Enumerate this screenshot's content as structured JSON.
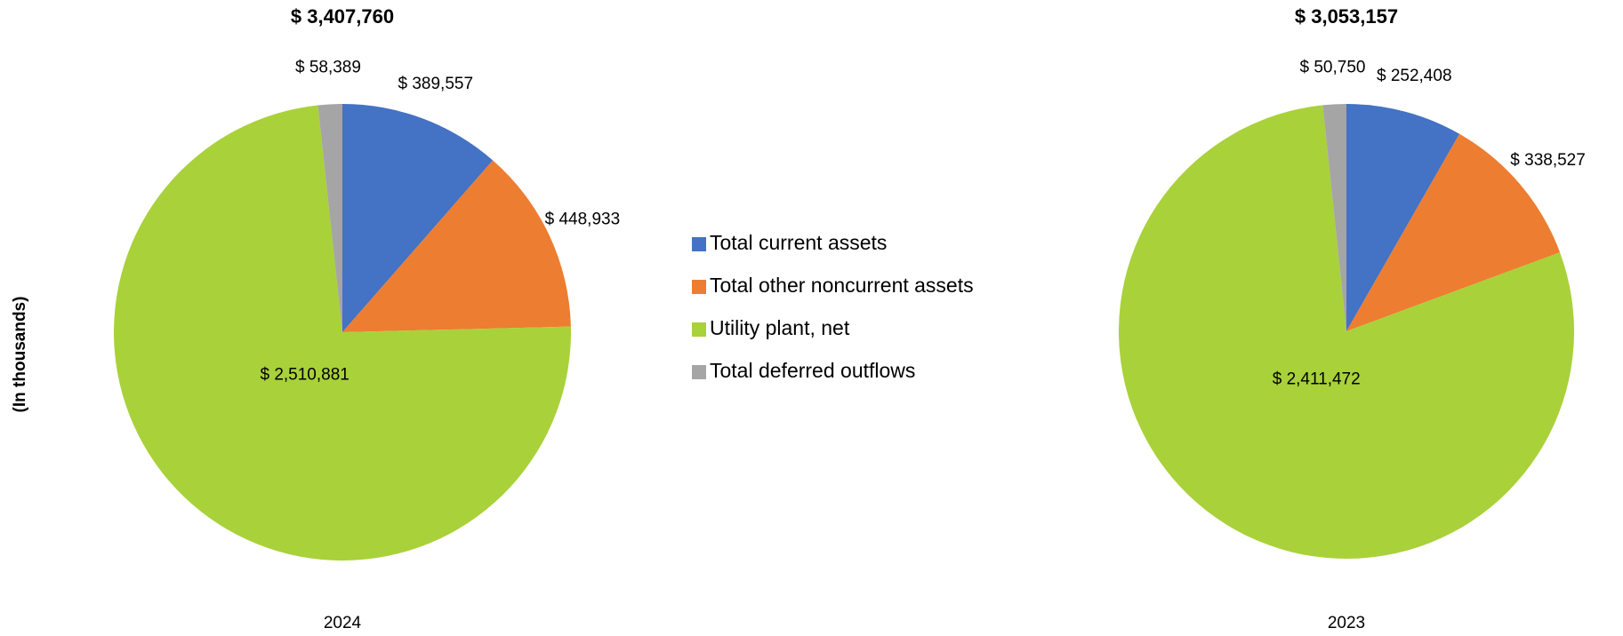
{
  "chart_data": [
    {
      "type": "pie",
      "title": "$ 3,407,760",
      "xlabel": "2024",
      "ylabel": "(In thousands)",
      "categories": [
        "Total current assets",
        "Total other noncurrent assets",
        "Utility plant, net",
        "Total deferred outflows"
      ],
      "values": [
        389557,
        448933,
        2510881,
        58389
      ],
      "value_labels": [
        "$ 389,557",
        "$ 448,933",
        "$ 2,510,881",
        "$ 58,389"
      ],
      "colors": [
        "#4472c4",
        "#ed7d31",
        "#a9d13a",
        "#a5a5a5"
      ]
    },
    {
      "type": "pie",
      "title": "$ 3,053,157",
      "xlabel": "2023",
      "categories": [
        "Total current assets",
        "Total other noncurrent assets",
        "Utility plant, net",
        "Total deferred outflows"
      ],
      "values": [
        252408,
        338527,
        2411472,
        50750
      ],
      "value_labels": [
        "$ 252,408",
        "$ 338,527",
        "$ 2,411,472",
        "$ 50,750"
      ],
      "colors": [
        "#4472c4",
        "#ed7d31",
        "#a9d13a",
        "#a5a5a5"
      ]
    }
  ]
}
